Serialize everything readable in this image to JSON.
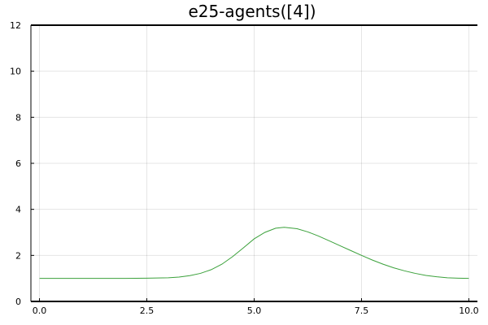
{
  "chart_data": {
    "type": "line",
    "title": "e25-agents([4])",
    "xlabel": "",
    "ylabel": "",
    "xlim": [
      -0.2,
      10.2
    ],
    "ylim": [
      0,
      12
    ],
    "x_ticks": [
      0.0,
      2.5,
      5.0,
      7.5,
      10.0
    ],
    "x_tick_labels": [
      "0.0",
      "2.5",
      "5.0",
      "7.5",
      "10.0"
    ],
    "y_ticks": [
      0,
      2,
      4,
      6,
      8,
      10,
      12
    ],
    "y_tick_labels": [
      "0",
      "2",
      "4",
      "6",
      "8",
      "10",
      "12"
    ],
    "grid": true,
    "legend": "none",
    "series": [
      {
        "color": "#3ba13b",
        "x": [
          0.0,
          0.5,
          1.0,
          1.5,
          2.0,
          2.5,
          3.0,
          3.25,
          3.5,
          3.75,
          4.0,
          4.25,
          4.5,
          4.75,
          5.0,
          5.25,
          5.5,
          5.7,
          6.0,
          6.25,
          6.5,
          6.75,
          7.0,
          7.25,
          7.5,
          7.75,
          8.0,
          8.25,
          8.5,
          8.75,
          9.0,
          9.25,
          9.5,
          9.75,
          10.0
        ],
        "y": [
          1.0,
          1.0,
          1.0,
          1.0,
          1.0,
          1.01,
          1.03,
          1.06,
          1.12,
          1.22,
          1.38,
          1.62,
          1.95,
          2.33,
          2.72,
          3.0,
          3.18,
          3.22,
          3.16,
          3.02,
          2.84,
          2.63,
          2.42,
          2.21,
          2.0,
          1.8,
          1.62,
          1.46,
          1.33,
          1.22,
          1.13,
          1.07,
          1.03,
          1.01,
          1.0
        ]
      }
    ]
  }
}
